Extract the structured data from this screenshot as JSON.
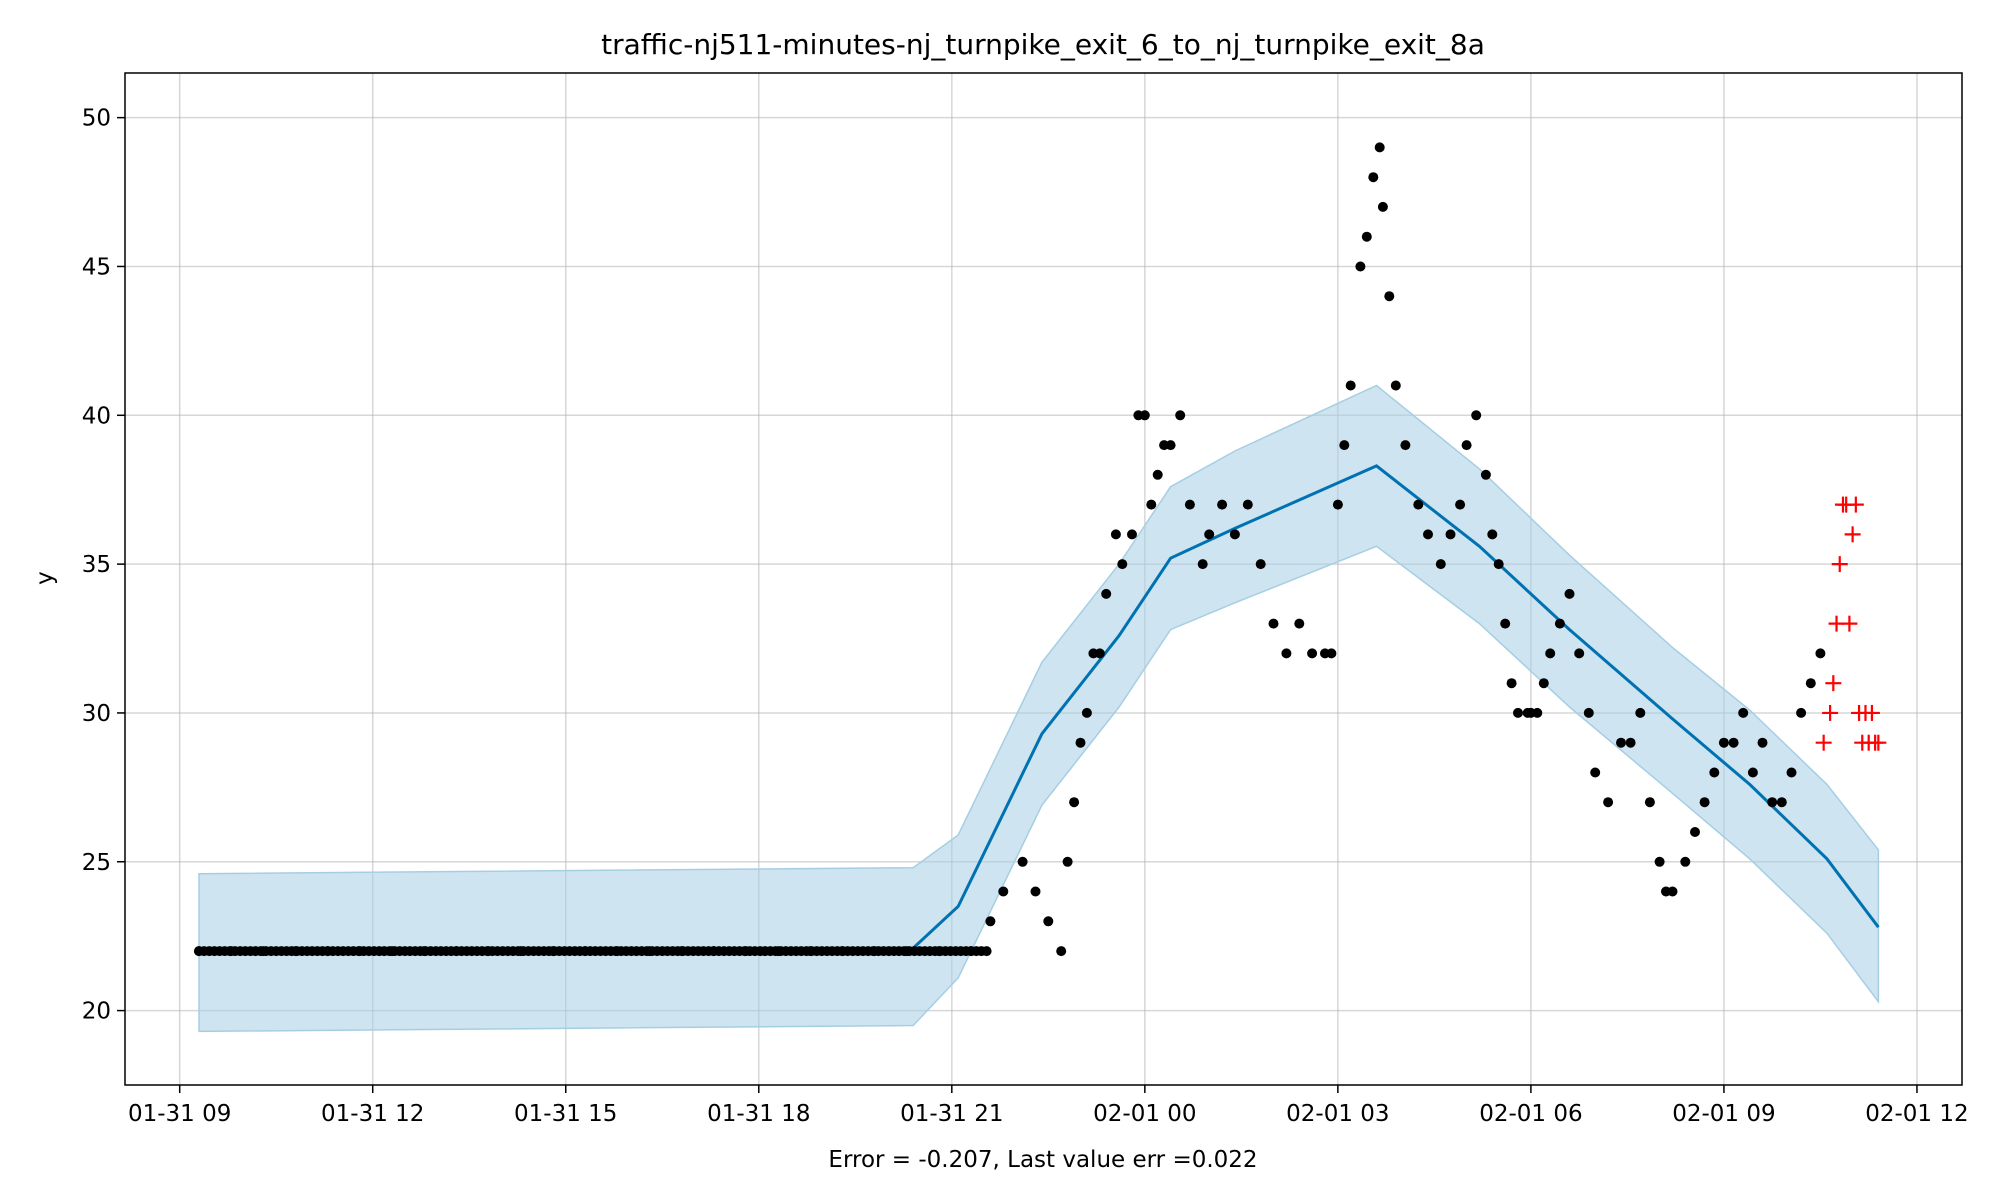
{
  "chart_data": {
    "type": "scatter",
    "title": "traffic-nj511-minutes-nj_turnpike_exit_6_to_nj_turnpike_exit_8a",
    "xlabel": "Error = -0.207, Last value err =0.022",
    "ylabel": "y",
    "x_unit": "hours since 01-31 00:00",
    "xlim": [
      8.15,
      36.7
    ],
    "ylim": [
      17.5,
      51.5
    ],
    "x_ticks": [
      {
        "value": 9,
        "label": "01-31 09"
      },
      {
        "value": 12,
        "label": "01-31 12"
      },
      {
        "value": 15,
        "label": "01-31 15"
      },
      {
        "value": 18,
        "label": "01-31 18"
      },
      {
        "value": 21,
        "label": "01-31 21"
      },
      {
        "value": 24,
        "label": "02-01 00"
      },
      {
        "value": 27,
        "label": "02-01 03"
      },
      {
        "value": 30,
        "label": "02-01 06"
      },
      {
        "value": 33,
        "label": "02-01 09"
      },
      {
        "value": 36,
        "label": "02-01 12"
      }
    ],
    "y_ticks": [
      20,
      25,
      30,
      35,
      40,
      45,
      50
    ],
    "grid": true,
    "colors": {
      "observed": "#000000",
      "forecast": "#0072b2",
      "band": "#a6cee3",
      "future": "#ff0000"
    },
    "forecast_line": {
      "x": [
        9.3,
        20.4,
        21.1,
        22.4,
        23.6,
        24.4,
        25.4,
        27.6,
        29.2,
        30.6,
        32.2,
        33.4,
        34.6,
        35.4
      ],
      "y": [
        21.9,
        22.1,
        23.5,
        29.3,
        32.6,
        35.2,
        36.2,
        38.3,
        35.6,
        32.8,
        29.8,
        27.6,
        25.1,
        22.8
      ]
    },
    "uncertainty_band": {
      "x": [
        9.3,
        20.4,
        21.1,
        22.4,
        23.6,
        24.4,
        25.4,
        27.6,
        29.2,
        30.6,
        32.2,
        33.4,
        34.6,
        35.4
      ],
      "upper": [
        24.6,
        24.8,
        25.9,
        31.7,
        35.0,
        37.6,
        38.8,
        41.0,
        38.2,
        35.3,
        32.2,
        30.1,
        27.6,
        25.4
      ],
      "lower": [
        19.3,
        19.5,
        21.1,
        26.9,
        30.2,
        32.8,
        33.7,
        35.6,
        33.0,
        30.2,
        27.3,
        25.1,
        22.6,
        20.3
      ]
    },
    "observed": {
      "x": [
        9.3,
        9.8,
        10.3,
        10.8,
        11.3,
        11.8,
        12.3,
        12.8,
        13.3,
        13.8,
        14.3,
        14.8,
        15.3,
        15.8,
        16.3,
        16.8,
        17.3,
        17.8,
        18.3,
        18.8,
        19.3,
        19.8,
        20.3,
        20.8,
        21.3,
        21.6,
        21.8,
        22.1,
        22.3,
        22.5,
        22.7,
        22.8,
        22.9,
        23.0,
        23.1,
        23.2,
        23.3,
        23.4,
        23.55,
        23.65,
        23.8,
        23.9,
        24.0,
        24.1,
        24.2,
        24.3,
        24.4,
        24.55,
        24.7,
        24.9,
        25.0,
        25.2,
        25.4,
        25.6,
        25.8,
        26.0,
        26.2,
        26.4,
        26.6,
        26.8,
        26.9,
        27.0,
        27.1,
        27.2,
        27.35,
        27.45,
        27.55,
        27.65,
        27.7,
        27.8,
        27.9,
        28.05,
        28.25,
        28.4,
        28.6,
        28.75,
        28.9,
        29.0,
        29.15,
        29.3,
        29.4,
        29.5,
        29.6,
        29.7,
        29.8,
        29.95,
        30.0,
        30.1,
        30.2,
        30.3,
        30.45,
        30.6,
        30.75,
        30.9,
        31.0,
        31.2,
        31.4,
        31.55,
        31.7,
        31.85,
        32.0,
        32.1,
        32.2,
        32.4,
        32.55,
        32.7,
        32.85,
        33.0,
        33.15,
        33.3,
        33.45,
        33.6,
        33.75,
        33.9,
        34.05,
        34.2,
        34.35,
        34.5
      ],
      "y": [
        22,
        22,
        22,
        22,
        22,
        22,
        22,
        22,
        22,
        22,
        22,
        22,
        22,
        22,
        22,
        22,
        22,
        22,
        22,
        22,
        22,
        22,
        22,
        22,
        22,
        23,
        24,
        25,
        24,
        23,
        22,
        25,
        27,
        29,
        30,
        32,
        32,
        34,
        36,
        35,
        36,
        40,
        40,
        37,
        38,
        39,
        39,
        40,
        37,
        35,
        36,
        37,
        36,
        37,
        35,
        33,
        32,
        33,
        32,
        32,
        32,
        37,
        39,
        41,
        45,
        46,
        48,
        49,
        47,
        44,
        41,
        39,
        37,
        36,
        35,
        36,
        37,
        39,
        40,
        38,
        36,
        35,
        33,
        31,
        30,
        30,
        30,
        30,
        31,
        32,
        33,
        34,
        32,
        30,
        28,
        27,
        29,
        29,
        30,
        27,
        25,
        24,
        24,
        25,
        26,
        27,
        28,
        29,
        29,
        30,
        28,
        29,
        27,
        27,
        28,
        30,
        31,
        32
      ]
    },
    "future": {
      "x": [
        34.55,
        34.65,
        34.7,
        34.75,
        34.8,
        34.85,
        34.9,
        34.95,
        35.0,
        35.05,
        35.1,
        35.15,
        35.2,
        35.25,
        35.3,
        35.35,
        35.4
      ],
      "y": [
        29,
        30,
        31,
        33,
        35,
        37,
        37,
        33,
        36,
        37,
        30,
        29,
        30,
        29,
        30,
        29,
        29
      ]
    }
  }
}
